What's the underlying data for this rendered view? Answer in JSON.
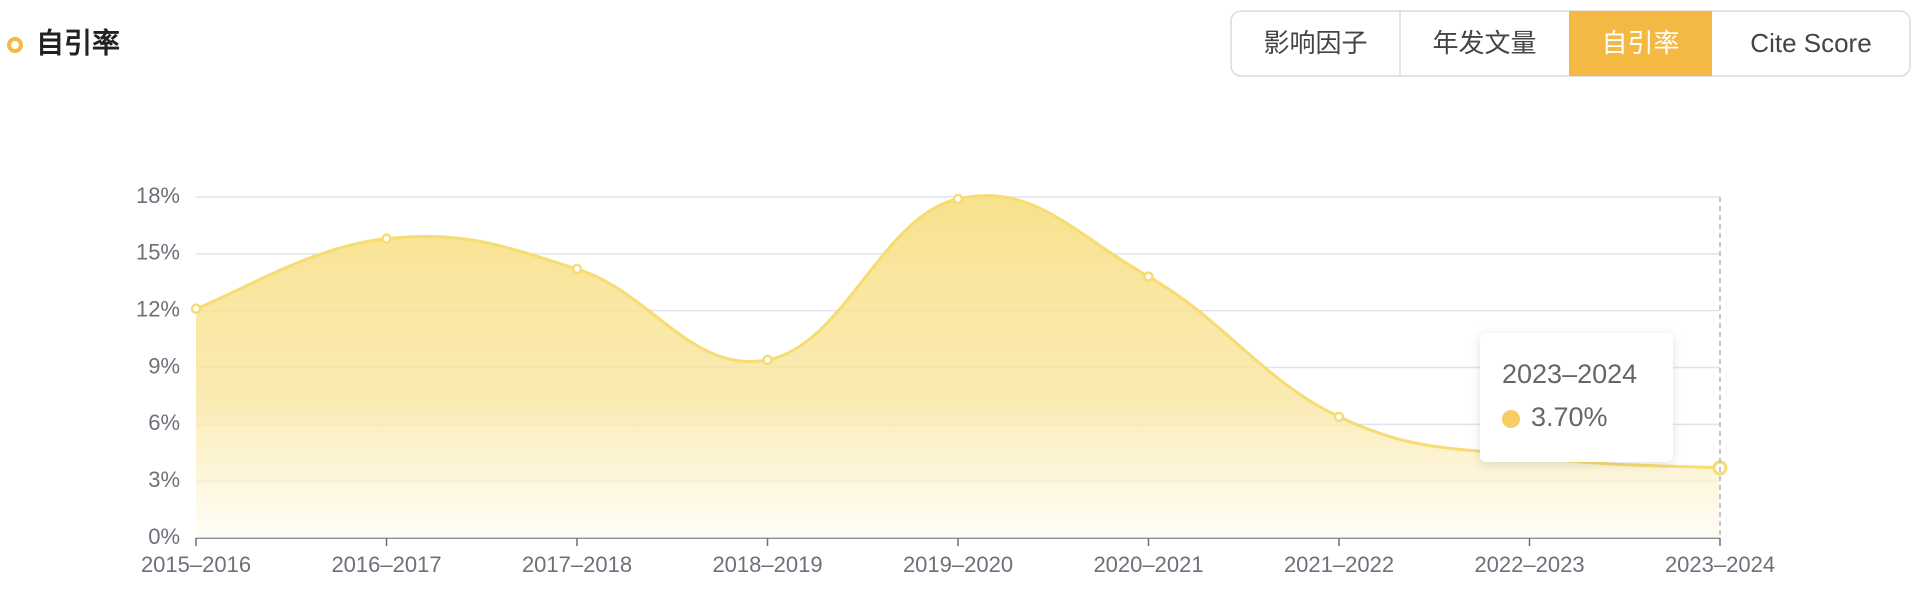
{
  "header": {
    "title": "自引率",
    "tabs": [
      "影响因子",
      "年发文量",
      "自引率",
      "Cite Score"
    ],
    "active_tab": 2
  },
  "chart_data": {
    "type": "area",
    "categories": [
      "2015–2016",
      "2016–2017",
      "2017–2018",
      "2018–2019",
      "2019–2020",
      "2020–2021",
      "2021–2022",
      "2022–2023",
      "2023–2024"
    ],
    "series": [
      {
        "color": "#f7dc72",
        "values": [
          12.1,
          15.8,
          14.2,
          9.4,
          17.9,
          13.8,
          6.4,
          4.3,
          3.7
        ]
      }
    ],
    "ylim": [
      0,
      18
    ],
    "yticks": [
      {
        "value": 0,
        "label": "0%"
      },
      {
        "value": 3,
        "label": "3%"
      },
      {
        "value": 6,
        "label": "6%"
      },
      {
        "value": 9,
        "label": "9%"
      },
      {
        "value": 12,
        "label": "12%"
      },
      {
        "value": 15,
        "label": "15%"
      },
      {
        "value": 18,
        "label": "18%"
      }
    ],
    "grid": true,
    "tooltip": {
      "title": "2023–2024",
      "value": "3.70%"
    }
  }
}
